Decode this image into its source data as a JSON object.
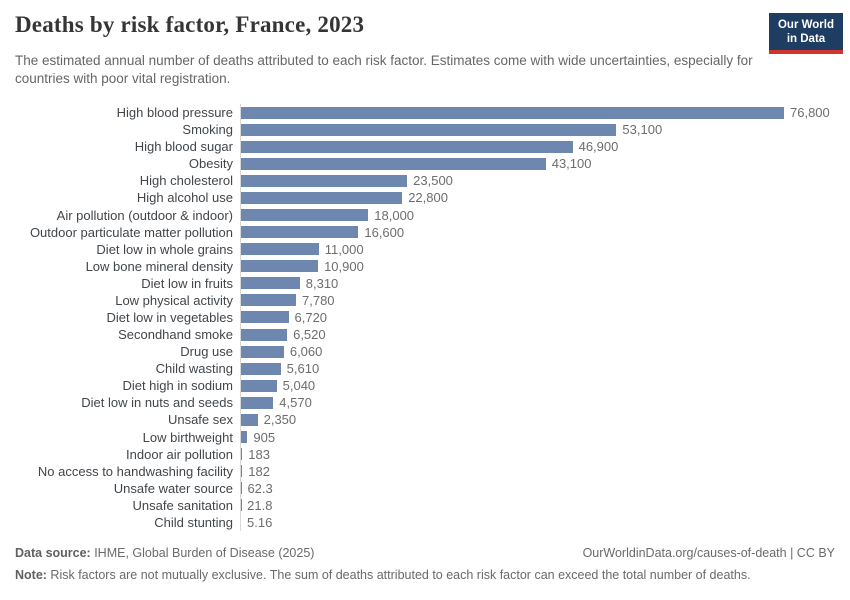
{
  "header": {
    "title": "Deaths by risk factor, France, 2023",
    "subtitle": "The estimated annual number of deaths attributed to each risk factor. Estimates come with wide uncertainties, especially for countries with poor vital registration.",
    "logo": {
      "line1": "Our World",
      "line2": "in Data"
    }
  },
  "chart_data": {
    "type": "bar",
    "orientation": "horizontal",
    "title": "Deaths by risk factor, France, 2023",
    "xlabel": "",
    "ylabel": "",
    "xlim": [
      0,
      76800
    ],
    "grid": false,
    "legend": "none",
    "bar_color": "#6e87af",
    "categories": [
      "High blood pressure",
      "Smoking",
      "High blood sugar",
      "Obesity",
      "High cholesterol",
      "High alcohol use",
      "Air pollution (outdoor & indoor)",
      "Outdoor particulate matter pollution",
      "Diet low in whole grains",
      "Low bone mineral density",
      "Diet low in fruits",
      "Low physical activity",
      "Diet low in vegetables",
      "Secondhand smoke",
      "Drug use",
      "Child wasting",
      "Diet high in sodium",
      "Diet low in nuts and seeds",
      "Unsafe sex",
      "Low birthweight",
      "Indoor air pollution",
      "No access to handwashing facility",
      "Unsafe water source",
      "Unsafe sanitation",
      "Child stunting"
    ],
    "values": [
      76800,
      53100,
      46900,
      43100,
      23500,
      22800,
      18000,
      16600,
      11000,
      10900,
      8310,
      7780,
      6720,
      6520,
      6060,
      5610,
      5040,
      4570,
      2350,
      905,
      183,
      182,
      62.3,
      21.8,
      5.16
    ],
    "value_labels": [
      "76,800",
      "53,100",
      "46,900",
      "43,100",
      "23,500",
      "22,800",
      "18,000",
      "16,600",
      "11,000",
      "10,900",
      "8,310",
      "7,780",
      "6,720",
      "6,520",
      "6,060",
      "5,610",
      "5,040",
      "4,570",
      "2,350",
      "905",
      "183",
      "182",
      "62.3",
      "21.8",
      "5.16"
    ]
  },
  "footer": {
    "datasource_label": "Data source:",
    "datasource_text": " IHME, Global Burden of Disease (2025)",
    "link_text": "OurWorldinData.org/causes-of-death | CC BY",
    "note_label": "Note:",
    "note_text": " Risk factors are not mutually exclusive. The sum of deaths attributed to each risk factor can exceed the total number of deaths."
  },
  "colors": {
    "bar": "#6e87af",
    "logo_navy": "#1d3d63",
    "logo_red": "#d0342c",
    "title_text": "#353535",
    "subtitle_text": "#666666",
    "label_text": "#41464b",
    "value_text": "#6d6d6d",
    "axis_line": "#d8d8d8"
  }
}
